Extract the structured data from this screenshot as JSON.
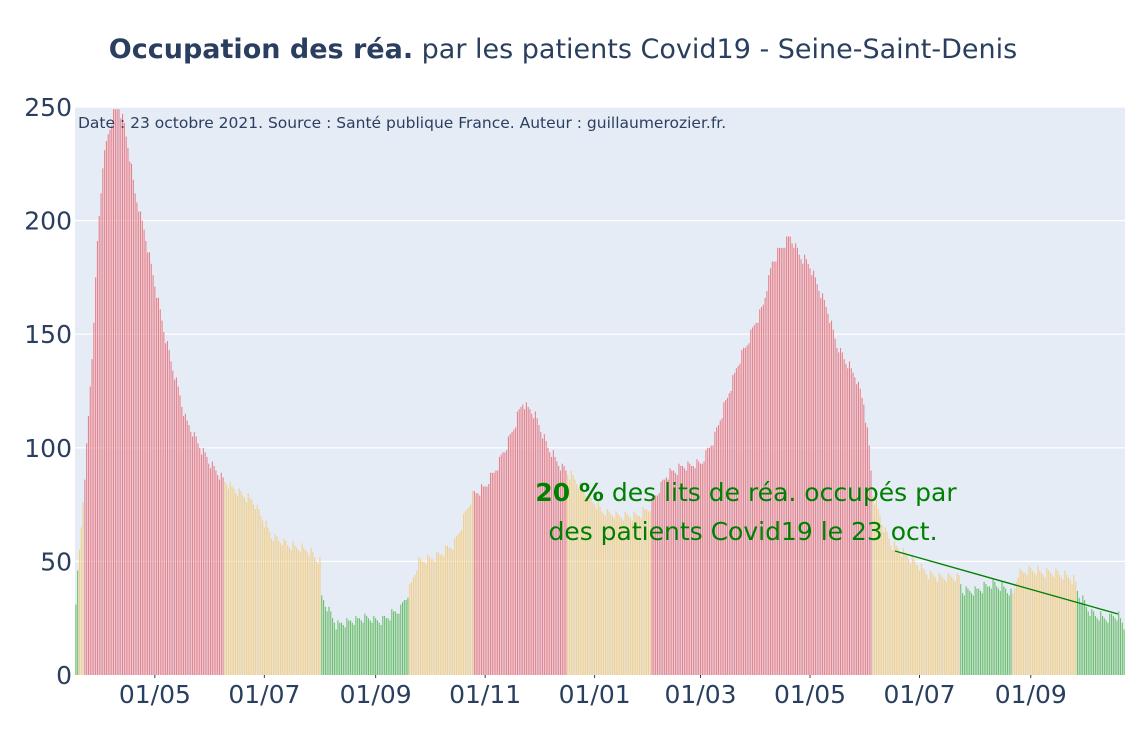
{
  "title": {
    "bold": "Occupation des réa.",
    "rest": " par les patients Covid19 - Seine-Saint-Denis"
  },
  "source_note": "Date : 23 octobre 2021. Source : Santé publique France. Auteur : guillaumerozier.fr.",
  "annotation": {
    "pct": "20  %",
    "line1_rest": " des lits de réa. occupés par",
    "line2": "des patients Covid19 le 23 oct."
  },
  "colors": {
    "plot_bg": "#e5ecf6",
    "grid": "#ffffff",
    "text": "#2a3f5f",
    "red": "#e8808a",
    "orange": "#f2cf8a",
    "green": "#6cbf6c",
    "annotation": "#008000"
  },
  "chart_data": {
    "type": "bar",
    "title": "Occupation des réa. par les patients Covid19 - Seine-Saint-Denis",
    "xlabel": "",
    "ylabel": "",
    "x_range": [
      "2020-03-18",
      "2021-10-23"
    ],
    "ylim": [
      0,
      250
    ],
    "y_ticks": [
      0,
      50,
      100,
      150,
      200,
      250
    ],
    "x_ticks": [
      {
        "date": "2020-05-01",
        "label": "01/05"
      },
      {
        "date": "2020-07-01",
        "label": "01/07"
      },
      {
        "date": "2020-09-01",
        "label": "01/09"
      },
      {
        "date": "2020-11-01",
        "label": "01/11"
      },
      {
        "date": "2021-01-01",
        "label": "01/01"
      },
      {
        "date": "2021-03-01",
        "label": "01/03"
      },
      {
        "date": "2021-05-01",
        "label": "01/05"
      },
      {
        "date": "2021-07-01",
        "label": "01/07"
      },
      {
        "date": "2021-09-01",
        "label": "01/09"
      }
    ],
    "grid": true,
    "legend": "none",
    "color_rule": "red if share of beds occupied >= 60%, orange if >= 30%, else green",
    "series": [
      {
        "points": [
          [
            "2020-03-18",
            33
          ],
          [
            "2020-03-21",
            65
          ],
          [
            "2020-03-24",
            100
          ],
          [
            "2020-03-27",
            140
          ],
          [
            "2020-03-30",
            190
          ],
          [
            "2020-04-02",
            225
          ],
          [
            "2020-04-05",
            238
          ],
          [
            "2020-04-08",
            247
          ],
          [
            "2020-04-11",
            250
          ],
          [
            "2020-04-14",
            242
          ],
          [
            "2020-04-17",
            228
          ],
          [
            "2020-04-20",
            212
          ],
          [
            "2020-04-25",
            196
          ],
          [
            "2020-05-01",
            172
          ],
          [
            "2020-05-07",
            148
          ],
          [
            "2020-05-12",
            132
          ],
          [
            "2020-05-18",
            113
          ],
          [
            "2020-05-25",
            102
          ],
          [
            "2020-06-01",
            93
          ],
          [
            "2020-06-08",
            86
          ],
          [
            "2020-06-15",
            81
          ],
          [
            "2020-06-25",
            76
          ],
          [
            "2020-07-05",
            61
          ],
          [
            "2020-07-15",
            57
          ],
          [
            "2020-07-25",
            55
          ],
          [
            "2020-08-01",
            50
          ],
          [
            "2020-08-02",
            34
          ],
          [
            "2020-08-10",
            22
          ],
          [
            "2020-08-25",
            25
          ],
          [
            "2020-09-05",
            24
          ],
          [
            "2020-09-15",
            29
          ],
          [
            "2020-09-20",
            38
          ],
          [
            "2020-09-25",
            50
          ],
          [
            "2020-10-05",
            52
          ],
          [
            "2020-10-15",
            58
          ],
          [
            "2020-10-25",
            79
          ],
          [
            "2020-11-01",
            83
          ],
          [
            "2020-11-08",
            92
          ],
          [
            "2020-11-15",
            105
          ],
          [
            "2020-11-22",
            120
          ],
          [
            "2020-11-29",
            114
          ],
          [
            "2020-12-06",
            100
          ],
          [
            "2020-12-13",
            92
          ],
          [
            "2020-12-20",
            87
          ],
          [
            "2020-12-27",
            80
          ],
          [
            "2021-01-05",
            72
          ],
          [
            "2021-01-15",
            70
          ],
          [
            "2021-01-25",
            70
          ],
          [
            "2021-02-01",
            74
          ],
          [
            "2021-02-10",
            88
          ],
          [
            "2021-02-20",
            92
          ],
          [
            "2021-03-01",
            93
          ],
          [
            "2021-03-08",
            103
          ],
          [
            "2021-03-15",
            120
          ],
          [
            "2021-03-22",
            137
          ],
          [
            "2021-03-29",
            150
          ],
          [
            "2021-04-05",
            163
          ],
          [
            "2021-04-10",
            182
          ],
          [
            "2021-04-15",
            188
          ],
          [
            "2021-04-20",
            193
          ],
          [
            "2021-04-25",
            185
          ],
          [
            "2021-05-01",
            180
          ],
          [
            "2021-05-06",
            170
          ],
          [
            "2021-05-11",
            160
          ],
          [
            "2021-05-16",
            145
          ],
          [
            "2021-05-21",
            138
          ],
          [
            "2021-05-26",
            132
          ],
          [
            "2021-05-31",
            120
          ],
          [
            "2021-06-03",
            100
          ],
          [
            "2021-06-05",
            80
          ],
          [
            "2021-06-10",
            67
          ],
          [
            "2021-06-15",
            58
          ],
          [
            "2021-06-20",
            55
          ],
          [
            "2021-06-28",
            50
          ],
          [
            "2021-07-06",
            44
          ],
          [
            "2021-07-15",
            43
          ],
          [
            "2021-07-23",
            43
          ],
          [
            "2021-07-25",
            37
          ],
          [
            "2021-08-01",
            37
          ],
          [
            "2021-08-10",
            40
          ],
          [
            "2021-08-18",
            38
          ],
          [
            "2021-08-22",
            35
          ],
          [
            "2021-08-25",
            45
          ],
          [
            "2021-09-01",
            46
          ],
          [
            "2021-09-10",
            45
          ],
          [
            "2021-09-15",
            45
          ],
          [
            "2021-09-25",
            42
          ],
          [
            "2021-09-28",
            35
          ],
          [
            "2021-10-05",
            27
          ],
          [
            "2021-10-12",
            25
          ],
          [
            "2021-10-20",
            26
          ],
          [
            "2021-10-23",
            21
          ]
        ],
        "color_periods": [
          {
            "from": "2020-03-18",
            "to": "2020-03-19",
            "color": "green"
          },
          {
            "from": "2020-03-20",
            "to": "2020-03-22",
            "color": "orange"
          },
          {
            "from": "2020-03-23",
            "to": "2020-06-08",
            "color": "red"
          },
          {
            "from": "2020-06-09",
            "to": "2020-08-01",
            "color": "orange"
          },
          {
            "from": "2020-08-02",
            "to": "2020-09-19",
            "color": "green"
          },
          {
            "from": "2020-09-20",
            "to": "2020-10-25",
            "color": "orange"
          },
          {
            "from": "2020-10-26",
            "to": "2020-12-16",
            "color": "red"
          },
          {
            "from": "2020-12-17",
            "to": "2021-02-01",
            "color": "orange"
          },
          {
            "from": "2021-02-02",
            "to": "2021-06-04",
            "color": "red"
          },
          {
            "from": "2021-06-05",
            "to": "2021-07-23",
            "color": "orange"
          },
          {
            "from": "2021-07-24",
            "to": "2021-08-21",
            "color": "green"
          },
          {
            "from": "2021-08-22",
            "to": "2021-09-26",
            "color": "orange"
          },
          {
            "from": "2021-09-27",
            "to": "2021-10-23",
            "color": "green"
          }
        ]
      }
    ]
  }
}
